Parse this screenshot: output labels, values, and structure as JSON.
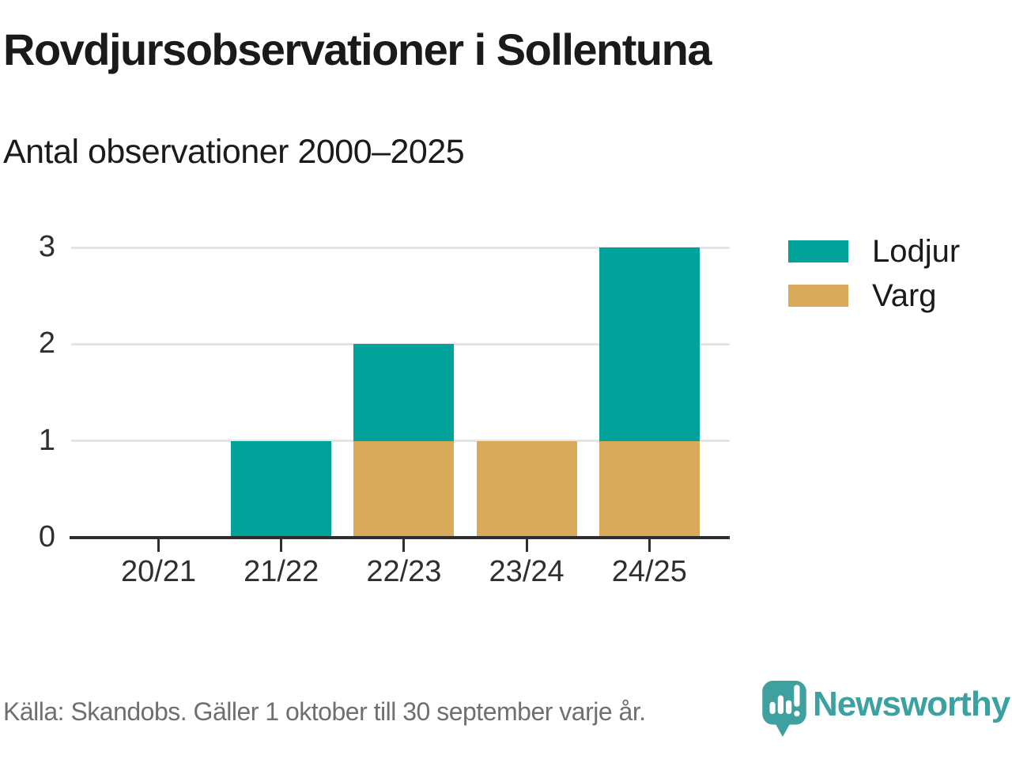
{
  "title": "Rovdjursobservationer i Sollentuna",
  "subtitle": "Antal observationer 2000–2025",
  "legend": [
    {
      "label": "Lodjur",
      "color": "#00a29a"
    },
    {
      "label": "Varg",
      "color": "#d8aa5a"
    }
  ],
  "footer": {
    "source": "Källa: Skandobs. Gäller 1 oktober till 30 september varje år.",
    "brand": "Newsworthy"
  },
  "colors": {
    "lodjur_teal": "#00a29a",
    "varg_gold": "#d8aa5a",
    "axis_dark": "#2e2e2e",
    "gridline_gray": "#e4e4e4",
    "brand_teal": "#3ba1a1",
    "text_dark": "#1a1a1a",
    "source_gray": "#6f6f6f"
  },
  "chart_data": {
    "type": "bar",
    "stacked": true,
    "title": "Rovdjursobservationer i Sollentuna",
    "subtitle": "Antal observationer 2000–2025",
    "categories": [
      "20/21",
      "21/22",
      "22/23",
      "23/24",
      "24/25"
    ],
    "series": [
      {
        "name": "Lodjur",
        "color": "#00a29a",
        "values": [
          0,
          1,
          1,
          0,
          2
        ]
      },
      {
        "name": "Varg",
        "color": "#d8aa5a",
        "values": [
          0,
          0,
          1,
          1,
          1
        ]
      }
    ],
    "stack_bottom_to_top": [
      "Varg",
      "Lodjur"
    ],
    "totals": [
      0,
      1,
      2,
      1,
      3
    ],
    "xlabel": "",
    "ylabel": "",
    "yticks": [
      0,
      1,
      2,
      3
    ],
    "ylim": [
      0,
      3
    ],
    "grid": "horizontal",
    "legend_position": "top-right"
  }
}
